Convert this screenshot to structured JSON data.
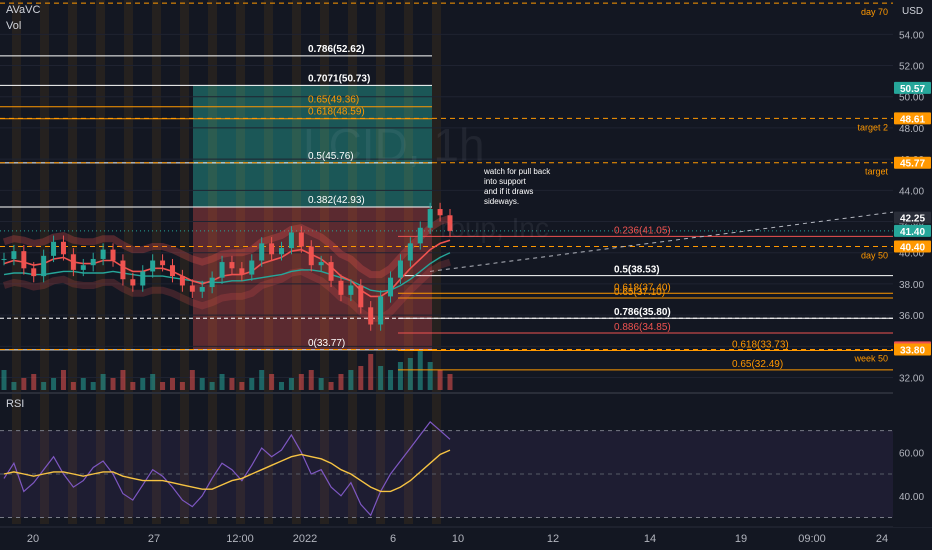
{
  "header": {
    "indicators": [
      "AVaVC",
      "Vol"
    ],
    "rsi_label": "RSI",
    "watermark": "LCID, 1h",
    "watermark_sub": "roup, Inc",
    "currency": "USD"
  },
  "annotation": {
    "note_lines": [
      "watch for pull back",
      "into support",
      "and if it draws",
      "sideways."
    ]
  },
  "chart_data": [
    {
      "type": "line",
      "title": "LCID, 1h",
      "xlabel": "",
      "ylabel": "",
      "ylim": [
        31.2,
        56.2
      ],
      "y_ticks": [
        "54.00",
        "52.00",
        "50.00",
        "48.00",
        "46.00",
        "44.00",
        "42.00",
        "40.00",
        "38.00",
        "36.00",
        "34.00",
        "32.00"
      ],
      "y_tick_values": [
        54,
        52,
        50,
        48,
        46,
        44,
        42,
        40,
        38,
        36,
        34,
        32
      ],
      "x_ticks": [
        "20",
        "27",
        "12:00",
        "2022",
        "6",
        "10",
        "12",
        "14",
        "19",
        "09:00",
        "24"
      ],
      "series": [
        {
          "name": "LCID",
          "color": "#26a69a",
          "values": [
            39.6,
            40.1,
            39.0,
            38.5,
            39.8,
            40.7,
            39.9,
            38.9,
            39.2,
            39.6,
            40.2,
            39.5,
            38.3,
            37.9,
            38.8,
            39.5,
            39.2,
            38.5,
            37.9,
            37.5,
            37.8,
            38.4,
            39.4,
            39.0,
            38.6,
            39.5,
            40.6,
            39.9,
            40.3,
            41.3,
            40.4,
            39.2,
            39.4,
            38.2,
            37.3,
            37.9,
            36.5,
            35.4,
            37.2,
            38.4,
            39.5,
            40.6,
            41.6,
            42.8,
            42.4,
            41.4
          ]
        },
        {
          "name": "EMA",
          "color": "#ef5350",
          "values": [
            39.3,
            39.5,
            39.4,
            39.2,
            39.3,
            39.6,
            39.7,
            39.4,
            39.3,
            39.3,
            39.5,
            39.5,
            39.1,
            38.8,
            38.8,
            39.0,
            39.0,
            38.8,
            38.5,
            38.2,
            38.0,
            38.2,
            38.5,
            38.6,
            38.6,
            38.8,
            39.3,
            39.5,
            39.7,
            40.1,
            40.2,
            39.9,
            39.6,
            39.1,
            38.5,
            38.2,
            37.6,
            37.2,
            37.2,
            37.6,
            38.3,
            39.0,
            39.6,
            40.2,
            40.6,
            40.8
          ]
        },
        {
          "name": "VWAP",
          "color": "#26a69a",
          "values": [
            38.6,
            38.7,
            38.7,
            38.6,
            38.6,
            38.7,
            38.8,
            38.8,
            38.7,
            38.7,
            38.7,
            38.8,
            38.7,
            38.6,
            38.5,
            38.5,
            38.5,
            38.4,
            38.3,
            38.2,
            38.1,
            38.1,
            38.1,
            38.2,
            38.2,
            38.3,
            38.4,
            38.5,
            38.6,
            38.8,
            38.9,
            38.9,
            38.8,
            38.6,
            38.4,
            38.2,
            37.9,
            37.6,
            37.5,
            37.6,
            37.9,
            38.3,
            38.8,
            39.3,
            39.7,
            40.0
          ]
        }
      ],
      "volume": [
        0.5,
        0.2,
        0.3,
        0.4,
        0.2,
        0.3,
        0.5,
        0.2,
        0.3,
        0.2,
        0.4,
        0.3,
        0.5,
        0.2,
        0.3,
        0.4,
        0.2,
        0.3,
        0.2,
        0.5,
        0.3,
        0.2,
        0.4,
        0.3,
        0.2,
        0.3,
        0.5,
        0.4,
        0.2,
        0.3,
        0.4,
        0.5,
        0.3,
        0.2,
        0.4,
        0.5,
        0.6,
        0.9,
        0.6,
        0.5,
        0.7,
        0.8,
        1.0,
        0.7,
        0.5,
        0.4
      ],
      "fib_right": [
        {
          "label": "0.786(52.62)",
          "value": 52.62,
          "color": "#ffffff",
          "bold": true
        },
        {
          "label": "0.7071(50.73)",
          "value": 50.73,
          "color": "#ffffff",
          "bold": true
        },
        {
          "label": "0.65(49.36)",
          "value": 49.36,
          "color": "#ff9800",
          "bold": false
        },
        {
          "label": "0.618(48.59)",
          "value": 48.59,
          "color": "#ff9800",
          "bold": false
        },
        {
          "label": "0.5(45.76)",
          "value": 45.76,
          "color": "#ffffff",
          "bold": false
        },
        {
          "label": "0.382(42.93)",
          "value": 42.93,
          "color": "#ffffff",
          "bold": false
        },
        {
          "label": "0(33.77)",
          "value": 33.77,
          "color": "#ffffff",
          "bold": false
        }
      ],
      "fib_left": [
        {
          "label": "0.236(41.05)",
          "value": 41.05,
          "color": "#ef5350",
          "bold": false
        },
        {
          "label": "0.5(38.53)",
          "value": 38.53,
          "color": "#ffffff",
          "bold": true
        },
        {
          "label": "0.618(37.40)",
          "value": 37.4,
          "color": "#ff9800",
          "bold": false
        },
        {
          "label": "0.65(37.10)",
          "value": 37.1,
          "color": "#ff9800",
          "bold": false
        },
        {
          "label": "0.786(35.80)",
          "value": 35.8,
          "color": "#ffffff",
          "bold": true
        },
        {
          "label": "0.886(34.85)",
          "value": 34.85,
          "color": "#ef5350",
          "bold": false
        },
        {
          "label": "0.618(33.73)",
          "value": 33.73,
          "color": "#ff9800",
          "bold": false
        },
        {
          "label": "0.65(32.49)",
          "value": 32.49,
          "color": "#ff9800",
          "bold": false
        }
      ],
      "key_levels": [
        {
          "name": "day 70",
          "value": 56.0
        },
        {
          "name": "target 2",
          "value": 48.61
        },
        {
          "name": "target",
          "value": 45.77
        },
        {
          "name": "day 50",
          "value": 40.4
        },
        {
          "name": "week 50",
          "value": 33.8
        }
      ],
      "price_badges": [
        {
          "text": "50.57",
          "value": 50.57,
          "color": "#26a69a"
        },
        {
          "text": "48.61",
          "value": 48.61,
          "color": "#ff9800"
        },
        {
          "text": "45.77",
          "value": 45.77,
          "color": "#ff9800"
        },
        {
          "text": "42.25",
          "value": 42.25,
          "color": "#2a2e39"
        },
        {
          "text": "41.40",
          "value": 41.4,
          "color": "#26a69a"
        },
        {
          "text": "40.40",
          "value": 40.4,
          "color": "#ff9800"
        },
        {
          "text": "33.93",
          "value": 33.93,
          "color": "#ef5350"
        },
        {
          "text": "33.80",
          "value": 33.8,
          "color": "#ff9800"
        }
      ],
      "target_zone": [
        42.93,
        50.73
      ],
      "stop_zone": [
        33.77,
        42.93
      ]
    },
    {
      "type": "line",
      "title": "RSI",
      "ylim": [
        27,
        85
      ],
      "y_ticks": [
        "60.00",
        "40.00"
      ],
      "y_tick_values": [
        60,
        40
      ],
      "band": [
        30,
        70
      ],
      "series": [
        {
          "name": "RSI",
          "color": "#7e57c2",
          "values": [
            48,
            55,
            42,
            46,
            52,
            58,
            50,
            44,
            47,
            53,
            56,
            50,
            41,
            38,
            45,
            52,
            49,
            44,
            38,
            35,
            40,
            48,
            55,
            52,
            47,
            54,
            62,
            58,
            61,
            68,
            60,
            50,
            52,
            44,
            40,
            46,
            36,
            31,
            42,
            50,
            56,
            62,
            68,
            74,
            70,
            66
          ]
        },
        {
          "name": "MA",
          "color": "#f6c343",
          "values": [
            50,
            51,
            50,
            49,
            50,
            51,
            51,
            50,
            49,
            50,
            51,
            51,
            49,
            48,
            47,
            47,
            47,
            46,
            45,
            44,
            43,
            43,
            45,
            47,
            48,
            50,
            52,
            54,
            56,
            58,
            59,
            58,
            57,
            55,
            52,
            50,
            47,
            44,
            42,
            42,
            44,
            47,
            51,
            55,
            59,
            61
          ]
        }
      ]
    }
  ]
}
